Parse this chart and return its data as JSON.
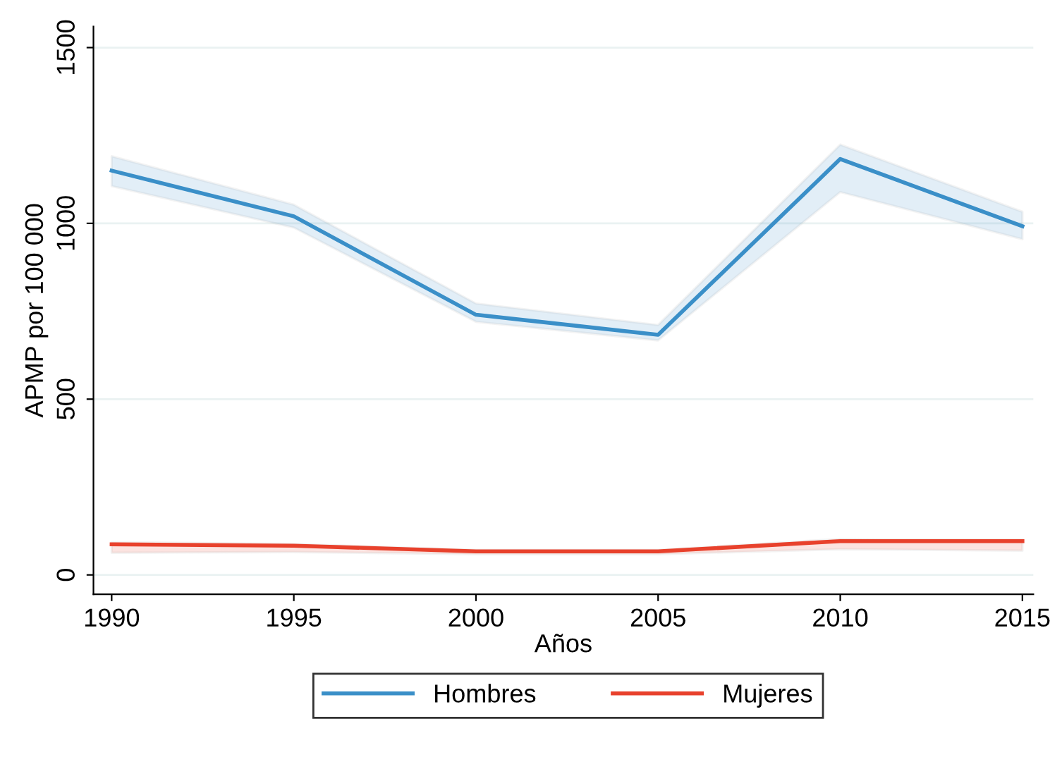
{
  "chart_data": {
    "type": "line",
    "xlabel": "Años",
    "ylabel": "APMP por 100 000",
    "x": [
      1990,
      1995,
      2000,
      2005,
      2010,
      2015
    ],
    "series": [
      {
        "name": "Hombres",
        "color": "#3a8fc8",
        "values": [
          1150,
          1020,
          740,
          683,
          1183,
          992
        ],
        "lower": [
          1106,
          988,
          720,
          667,
          1089,
          955
        ],
        "upper": [
          1191,
          1053,
          772,
          711,
          1224,
          1033
        ]
      },
      {
        "name": "Mujeres",
        "color": "#e8412c",
        "values": [
          87,
          83,
          67,
          67,
          96,
          96
        ],
        "lower": [
          63,
          65,
          59,
          59,
          73,
          69
        ],
        "upper": [
          93,
          88,
          71,
          71,
          102,
          100
        ]
      }
    ],
    "xlim": [
      1989.5,
      2015.3
    ],
    "ylim": [
      -55,
      1560
    ],
    "xticks": [
      1990,
      1995,
      2000,
      2005,
      2010,
      2015
    ],
    "yticks": [
      0,
      500,
      1000,
      1500
    ],
    "grid": "y",
    "legend": "bottom",
    "line_style": "solid",
    "marker": "none"
  }
}
